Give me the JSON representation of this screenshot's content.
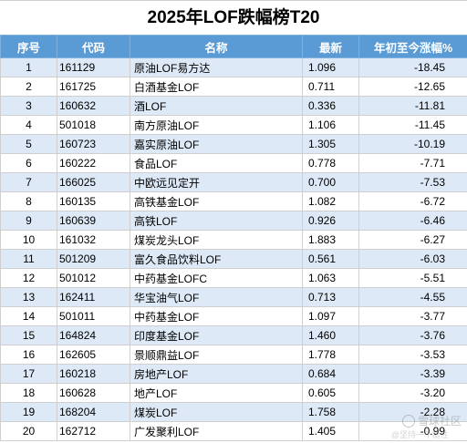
{
  "title": "2025年LOF跌幅榜T20",
  "headers": {
    "rank": "序号",
    "code": "代码",
    "name": "名称",
    "price": "最新",
    "change": "年初至今涨幅%"
  },
  "rows": [
    {
      "rank": "1",
      "code": "161129",
      "name": "原油LOF易方达",
      "price": "1.096",
      "change": "-18.45"
    },
    {
      "rank": "2",
      "code": "161725",
      "name": "白酒基金LOF",
      "price": "0.711",
      "change": "-12.65"
    },
    {
      "rank": "3",
      "code": "160632",
      "name": "酒LOF",
      "price": "0.336",
      "change": "-11.81"
    },
    {
      "rank": "4",
      "code": "501018",
      "name": "南方原油LOF",
      "price": "1.106",
      "change": "-11.45"
    },
    {
      "rank": "5",
      "code": "160723",
      "name": "嘉实原油LOF",
      "price": "1.305",
      "change": "-10.19"
    },
    {
      "rank": "6",
      "code": "160222",
      "name": "食品LOF",
      "price": "0.778",
      "change": "-7.71"
    },
    {
      "rank": "7",
      "code": "166025",
      "name": "中欧远见定开",
      "price": "0.700",
      "change": "-7.53"
    },
    {
      "rank": "8",
      "code": "160135",
      "name": "高铁基金LOF",
      "price": "1.082",
      "change": "-6.72"
    },
    {
      "rank": "9",
      "code": "160639",
      "name": "高铁LOF",
      "price": "0.926",
      "change": "-6.46"
    },
    {
      "rank": "10",
      "code": "161032",
      "name": "煤炭龙头LOF",
      "price": "1.883",
      "change": "-6.27"
    },
    {
      "rank": "11",
      "code": "501209",
      "name": "富久食品饮料LOF",
      "price": "0.561",
      "change": "-6.03"
    },
    {
      "rank": "12",
      "code": "501012",
      "name": "中药基金LOFC",
      "price": "1.063",
      "change": "-5.51"
    },
    {
      "rank": "13",
      "code": "162411",
      "name": "华宝油气LOF",
      "price": "0.713",
      "change": "-4.55"
    },
    {
      "rank": "14",
      "code": "501011",
      "name": "中药基金LOF",
      "price": "1.097",
      "change": "-3.77"
    },
    {
      "rank": "15",
      "code": "164824",
      "name": "印度基金LOF",
      "price": "1.460",
      "change": "-3.76"
    },
    {
      "rank": "16",
      "code": "162605",
      "name": "景顺鼎益LOF",
      "price": "1.778",
      "change": "-3.53"
    },
    {
      "rank": "17",
      "code": "160218",
      "name": "房地产LOF",
      "price": "0.684",
      "change": "-3.39"
    },
    {
      "rank": "18",
      "code": "160628",
      "name": "地产LOF",
      "price": "0.605",
      "change": "-3.20"
    },
    {
      "rank": "19",
      "code": "168204",
      "name": "煤炭LOF",
      "price": "1.758",
      "change": "-2.28"
    },
    {
      "rank": "20",
      "code": "162712",
      "name": "广发聚利LOF",
      "price": "1.405",
      "change": "-0.99"
    }
  ],
  "watermark": {
    "text": "雪球社区",
    "subtext": "@坚持一下挺住"
  },
  "colors": {
    "header_bg": "#5b9bd5",
    "odd_row_bg": "#dde9f6",
    "even_row_bg": "#ffffff"
  }
}
